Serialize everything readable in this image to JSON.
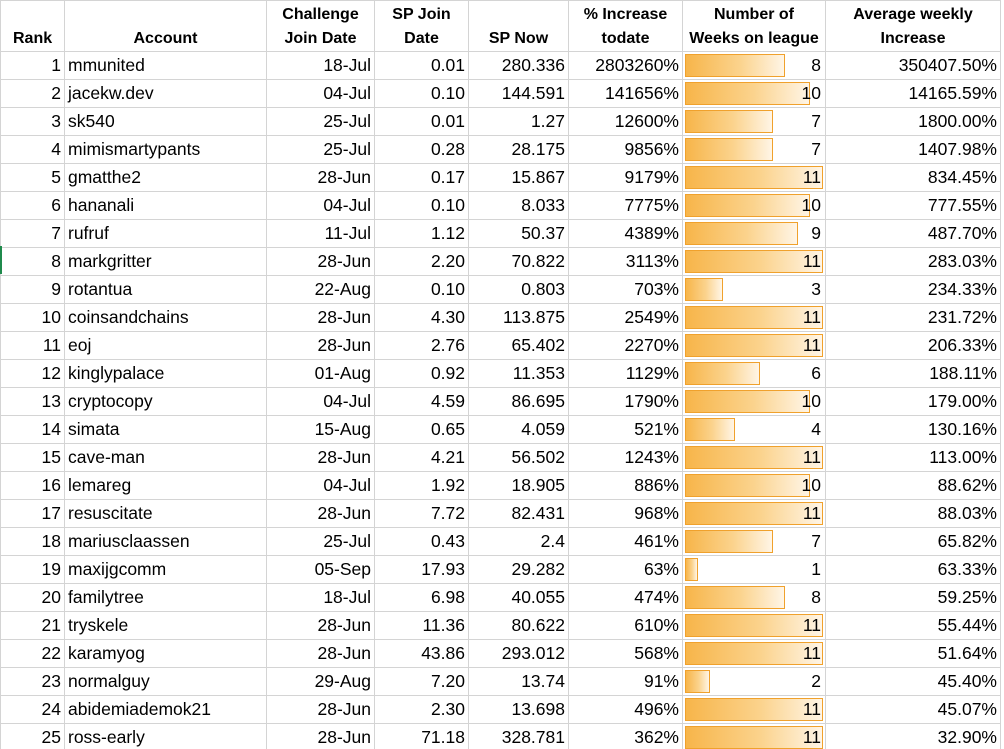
{
  "headers": {
    "rank": "Rank",
    "account": "Account",
    "join_date_line1": "Challenge",
    "join_date_line2": "Join Date",
    "sp_join_line1": "SP Join",
    "sp_join_line2": "Date",
    "sp_now": "SP Now",
    "pct_line1": "% Increase",
    "pct_line2": "todate",
    "weeks_line1": "Number of",
    "weeks_line2": "Weeks on league",
    "avg_line1": "Average weekly",
    "avg_line2": "Increase"
  },
  "colors": {
    "bar_fill": "#f7b54a",
    "bar_border": "#f0a12c",
    "grid": "#d4d4d4",
    "edge_marker": "#1f8a4c"
  },
  "weeks_max": 11,
  "rows": [
    {
      "rank": "1",
      "account": "mmunited",
      "join_date": "18-Jul",
      "sp_join": "0.01",
      "sp_now": "280.336",
      "pct": "2803260%",
      "weeks": "8",
      "avg": "350407.50%"
    },
    {
      "rank": "2",
      "account": "jacekw.dev",
      "join_date": "04-Jul",
      "sp_join": "0.10",
      "sp_now": "144.591",
      "pct": "141656%",
      "weeks": "10",
      "avg": "14165.59%"
    },
    {
      "rank": "3",
      "account": "sk540",
      "join_date": "25-Jul",
      "sp_join": "0.01",
      "sp_now": "1.27",
      "pct": "12600%",
      "weeks": "7",
      "avg": "1800.00%"
    },
    {
      "rank": "4",
      "account": "mimismartypants",
      "join_date": "25-Jul",
      "sp_join": "0.28",
      "sp_now": "28.175",
      "pct": "9856%",
      "weeks": "7",
      "avg": "1407.98%"
    },
    {
      "rank": "5",
      "account": "gmatthe2",
      "join_date": "28-Jun",
      "sp_join": "0.17",
      "sp_now": "15.867",
      "pct": "9179%",
      "weeks": "11",
      "avg": "834.45%"
    },
    {
      "rank": "6",
      "account": "hananali",
      "join_date": "04-Jul",
      "sp_join": "0.10",
      "sp_now": "8.033",
      "pct": "7775%",
      "weeks": "10",
      "avg": "777.55%"
    },
    {
      "rank": "7",
      "account": "rufruf",
      "join_date": "11-Jul",
      "sp_join": "1.12",
      "sp_now": "50.37",
      "pct": "4389%",
      "weeks": "9",
      "avg": "487.70%"
    },
    {
      "rank": "8",
      "account": "markgritter",
      "join_date": "28-Jun",
      "sp_join": "2.20",
      "sp_now": "70.822",
      "pct": "3113%",
      "weeks": "11",
      "avg": "283.03%"
    },
    {
      "rank": "9",
      "account": "rotantua",
      "join_date": "22-Aug",
      "sp_join": "0.10",
      "sp_now": "0.803",
      "pct": "703%",
      "weeks": "3",
      "avg": "234.33%"
    },
    {
      "rank": "10",
      "account": "coinsandchains",
      "join_date": "28-Jun",
      "sp_join": "4.30",
      "sp_now": "113.875",
      "pct": "2549%",
      "weeks": "11",
      "avg": "231.72%"
    },
    {
      "rank": "11",
      "account": "eoj",
      "join_date": "28-Jun",
      "sp_join": "2.76",
      "sp_now": "65.402",
      "pct": "2270%",
      "weeks": "11",
      "avg": "206.33%"
    },
    {
      "rank": "12",
      "account": "kinglypalace",
      "join_date": "01-Aug",
      "sp_join": "0.92",
      "sp_now": "11.353",
      "pct": "1129%",
      "weeks": "6",
      "avg": "188.11%"
    },
    {
      "rank": "13",
      "account": "cryptocopy",
      "join_date": "04-Jul",
      "sp_join": "4.59",
      "sp_now": "86.695",
      "pct": "1790%",
      "weeks": "10",
      "avg": "179.00%"
    },
    {
      "rank": "14",
      "account": "simata",
      "join_date": "15-Aug",
      "sp_join": "0.65",
      "sp_now": "4.059",
      "pct": "521%",
      "weeks": "4",
      "avg": "130.16%"
    },
    {
      "rank": "15",
      "account": "cave-man",
      "join_date": "28-Jun",
      "sp_join": "4.21",
      "sp_now": "56.502",
      "pct": "1243%",
      "weeks": "11",
      "avg": "113.00%"
    },
    {
      "rank": "16",
      "account": "lemareg",
      "join_date": "04-Jul",
      "sp_join": "1.92",
      "sp_now": "18.905",
      "pct": "886%",
      "weeks": "10",
      "avg": "88.62%"
    },
    {
      "rank": "17",
      "account": "resuscitate",
      "join_date": "28-Jun",
      "sp_join": "7.72",
      "sp_now": "82.431",
      "pct": "968%",
      "weeks": "11",
      "avg": "88.03%"
    },
    {
      "rank": "18",
      "account": "mariusclaassen",
      "join_date": "25-Jul",
      "sp_join": "0.43",
      "sp_now": "2.4",
      "pct": "461%",
      "weeks": "7",
      "avg": "65.82%"
    },
    {
      "rank": "19",
      "account": "maxijgcomm",
      "join_date": "05-Sep",
      "sp_join": "17.93",
      "sp_now": "29.282",
      "pct": "63%",
      "weeks": "1",
      "avg": "63.33%"
    },
    {
      "rank": "20",
      "account": "familytree",
      "join_date": "18-Jul",
      "sp_join": "6.98",
      "sp_now": "40.055",
      "pct": "474%",
      "weeks": "8",
      "avg": "59.25%"
    },
    {
      "rank": "21",
      "account": "tryskele",
      "join_date": "28-Jun",
      "sp_join": "11.36",
      "sp_now": "80.622",
      "pct": "610%",
      "weeks": "11",
      "avg": "55.44%"
    },
    {
      "rank": "22",
      "account": "karamyog",
      "join_date": "28-Jun",
      "sp_join": "43.86",
      "sp_now": "293.012",
      "pct": "568%",
      "weeks": "11",
      "avg": "51.64%"
    },
    {
      "rank": "23",
      "account": "normalguy",
      "join_date": "29-Aug",
      "sp_join": "7.20",
      "sp_now": "13.74",
      "pct": "91%",
      "weeks": "2",
      "avg": "45.40%"
    },
    {
      "rank": "24",
      "account": "abidemiademok21",
      "join_date": "28-Jun",
      "sp_join": "2.30",
      "sp_now": "13.698",
      "pct": "496%",
      "weeks": "11",
      "avg": "45.07%"
    },
    {
      "rank": "25",
      "account": "ross-early",
      "join_date": "28-Jun",
      "sp_join": "71.18",
      "sp_now": "328.781",
      "pct": "362%",
      "weeks": "11",
      "avg": "32.90%"
    }
  ]
}
